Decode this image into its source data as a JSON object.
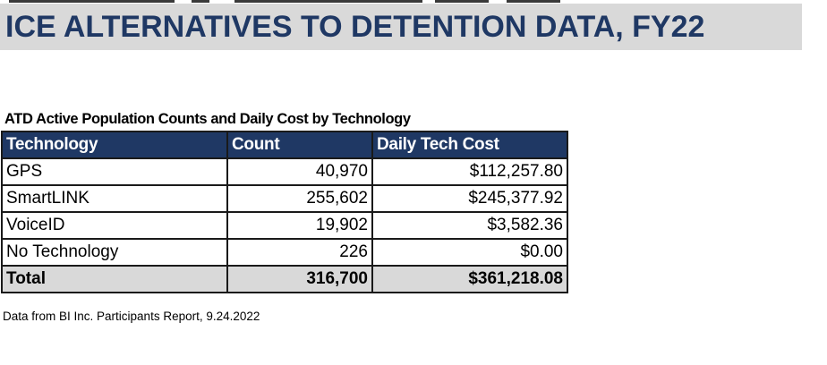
{
  "title": "ICE ALTERNATIVES TO DETENTION DATA, FY22",
  "table": {
    "caption": "ATD Active Population Counts and Daily Cost by Technology",
    "headers": [
      "Technology",
      "Count",
      "Daily Tech Cost"
    ],
    "rows": [
      [
        "GPS",
        "40,970",
        "$112,257.80"
      ],
      [
        "SmartLINK",
        "255,602",
        "$245,377.92"
      ],
      [
        "VoiceID",
        "19,902",
        "$3,582.36"
      ],
      [
        "No Technology",
        "226",
        "$0.00"
      ]
    ],
    "total": [
      "Total",
      "316,700",
      "$361,218.08"
    ]
  },
  "footnote": "Data from BI Inc. Participants Report, 9.24.2022",
  "colors": {
    "title_text": "#1f3864",
    "title_band": "#d9d9d9",
    "header_fill": "#1f3864",
    "total_fill": "#d9d9d9"
  }
}
